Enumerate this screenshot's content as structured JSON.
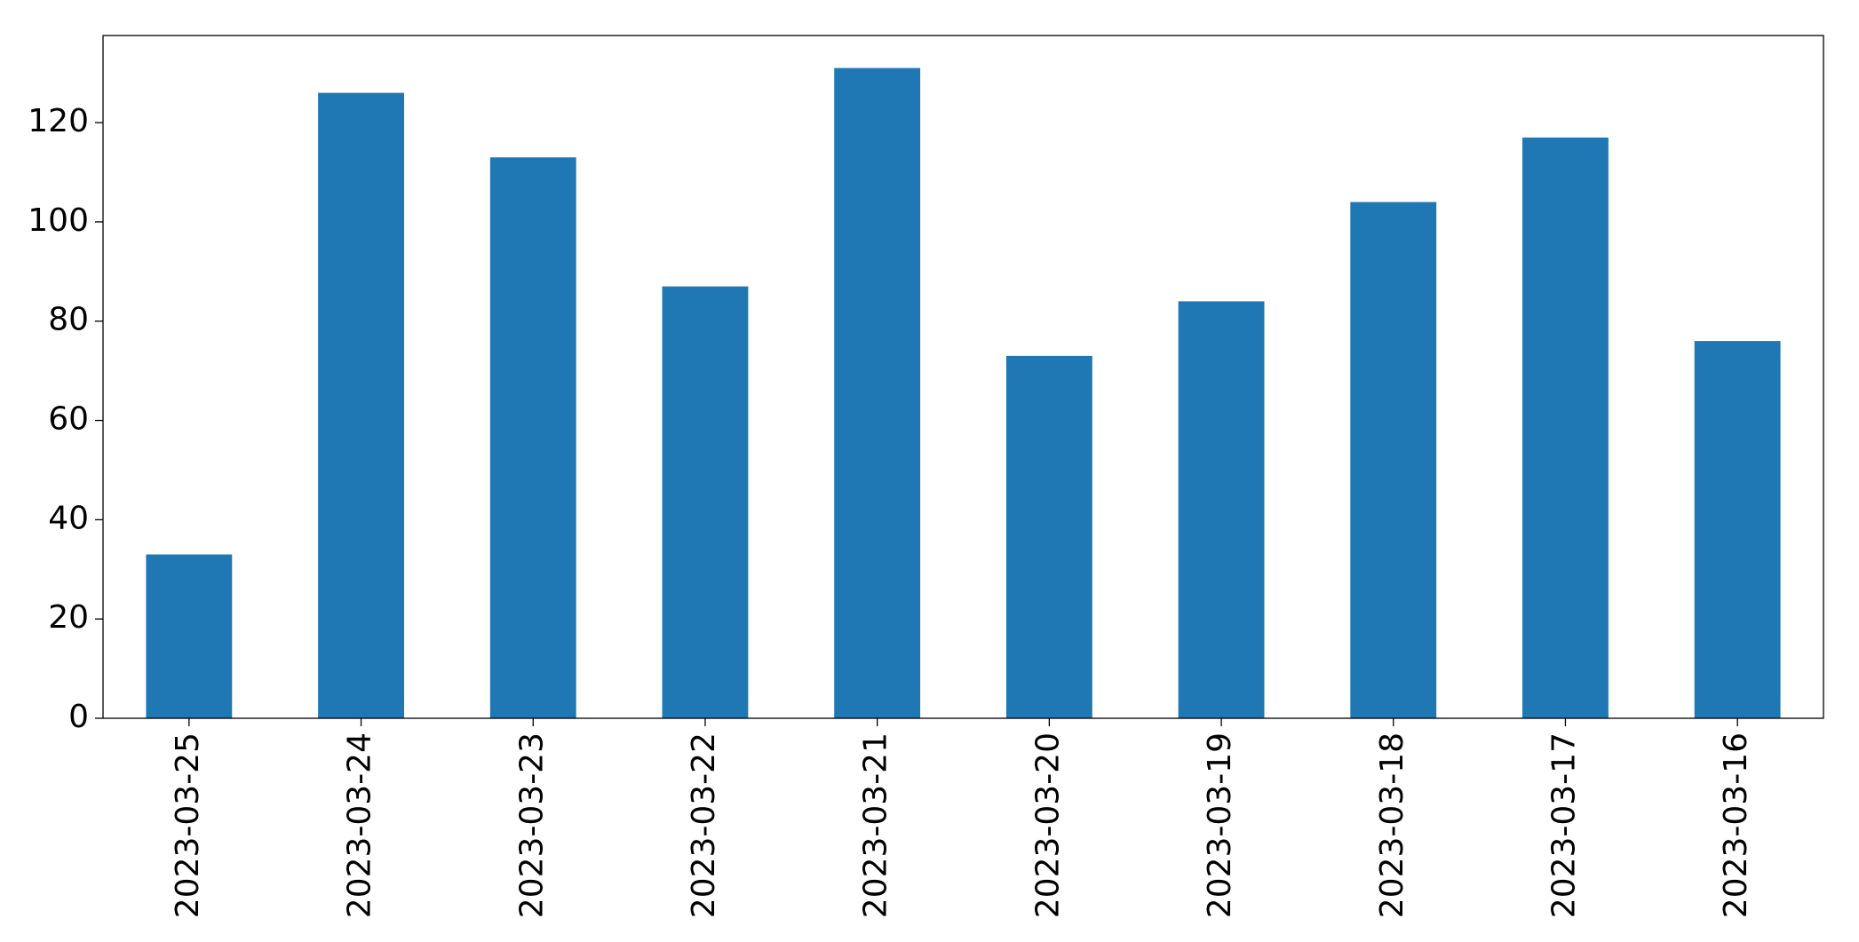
{
  "chart_data": {
    "type": "bar",
    "categories": [
      "2023-03-25",
      "2023-03-24",
      "2023-03-23",
      "2023-03-22",
      "2023-03-21",
      "2023-03-20",
      "2023-03-19",
      "2023-03-18",
      "2023-03-17",
      "2023-03-16"
    ],
    "values": [
      33,
      126,
      113,
      87,
      131,
      73,
      84,
      104,
      117,
      76
    ],
    "color": "#1f77b4",
    "ylim": [
      0,
      137.55
    ],
    "yticks": [
      0,
      20,
      40,
      60,
      80,
      100,
      120
    ],
    "grid": false
  }
}
